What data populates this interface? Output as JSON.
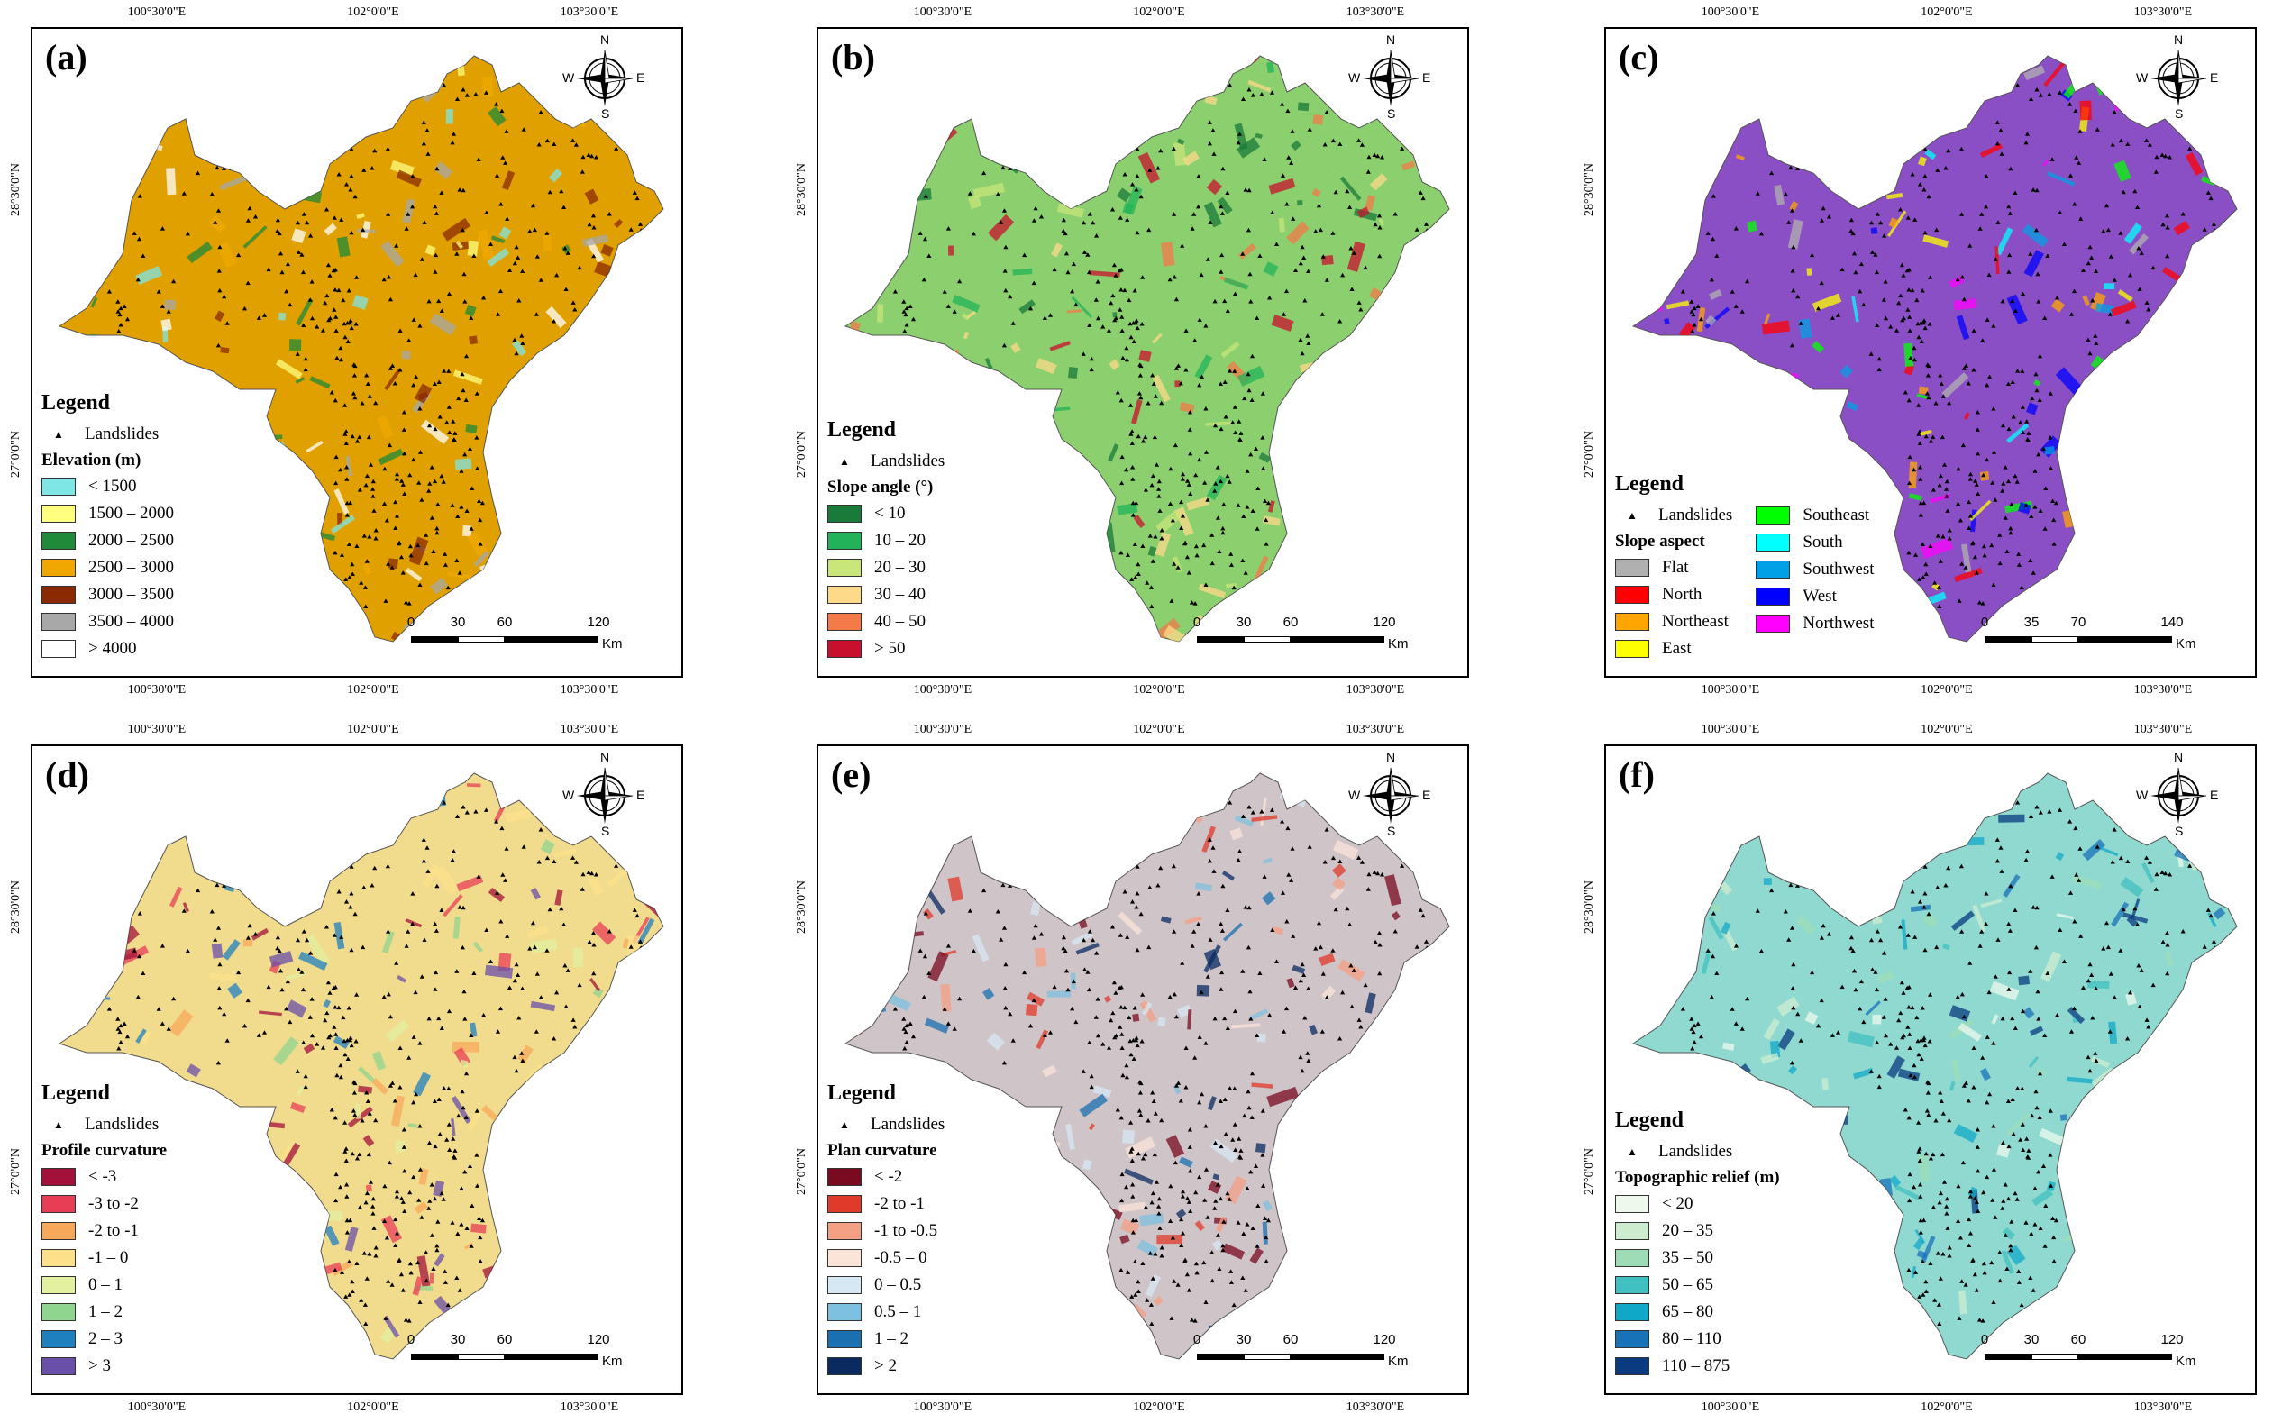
{
  "ticks": {
    "lon": [
      "100°30'0\"E",
      "102°0'0\"E",
      "103°30'0\"E"
    ],
    "lat": [
      "28°30'0\"N",
      "27°0'0\"N"
    ]
  },
  "compass": {
    "n": "N",
    "s": "S",
    "e": "E",
    "w": "W"
  },
  "legend_title": "Legend",
  "landslides_label": "Landslides",
  "panels": [
    {
      "label": "(a)",
      "map_fill": "#e0a000",
      "legend_title": "Elevation (m)",
      "classes": [
        {
          "label": "< 1500",
          "color": "#7fe6e6"
        },
        {
          "label": "1500 – 2000",
          "color": "#ffff80"
        },
        {
          "label": "2000 – 2500",
          "color": "#1e8a3a"
        },
        {
          "label": "2500 – 3000",
          "color": "#f0a800"
        },
        {
          "label": "3000 – 3500",
          "color": "#8b2a00"
        },
        {
          "label": "3500 – 4000",
          "color": "#a8a8a8"
        },
        {
          "label": "> 4000",
          "color": "#ffffff"
        }
      ],
      "scale": [
        "0",
        "30",
        "60",
        "120"
      ],
      "unit": "Km"
    },
    {
      "label": "(b)",
      "map_fill": "#8ccf6e",
      "legend_title": "Slope angle (°)",
      "classes": [
        {
          "label": "< 10",
          "color": "#1a7a3a"
        },
        {
          "label": "10 – 20",
          "color": "#22b35a"
        },
        {
          "label": "20 – 30",
          "color": "#c8e67a"
        },
        {
          "label": "30 – 40",
          "color": "#fdd98a"
        },
        {
          "label": "40 – 50",
          "color": "#f47a4a"
        },
        {
          "label": "> 50",
          "color": "#c8102e"
        }
      ],
      "scale": [
        "0",
        "30",
        "60",
        "120"
      ],
      "unit": "Km"
    },
    {
      "label": "(c)",
      "map_fill": "#8a4fc4",
      "legend_title": "Slope aspect",
      "classes": [
        {
          "label": "Flat",
          "color": "#b0b0b0"
        },
        {
          "label": "North",
          "color": "#ff0000"
        },
        {
          "label": "Northeast",
          "color": "#ffa500"
        },
        {
          "label": "East",
          "color": "#ffff00"
        },
        {
          "label": "Southeast",
          "color": "#00ff00"
        },
        {
          "label": "South",
          "color": "#00ffff"
        },
        {
          "label": "Southwest",
          "color": "#00a0e6"
        },
        {
          "label": "West",
          "color": "#0000ff"
        },
        {
          "label": "Northwest",
          "color": "#ff00ff"
        }
      ],
      "scale": [
        "0",
        "35",
        "70",
        "140"
      ],
      "unit": "Km"
    },
    {
      "label": "(d)",
      "map_fill": "#f1dc8e",
      "legend_title": "Profile curvature",
      "classes": [
        {
          "label": "< -3",
          "color": "#a3103a"
        },
        {
          "label": "-3 to -2",
          "color": "#e83e55"
        },
        {
          "label": "-2 to -1",
          "color": "#f7a85a"
        },
        {
          "label": "-1 – 0",
          "color": "#fde18a"
        },
        {
          "label": "0 – 1",
          "color": "#e2f0a0"
        },
        {
          "label": "1 – 2",
          "color": "#8fd48f"
        },
        {
          "label": "2 – 3",
          "color": "#1f80c0"
        },
        {
          "label": "> 3",
          "color": "#6a4fa8"
        }
      ],
      "scale": [
        "0",
        "30",
        "60",
        "120"
      ],
      "unit": "Km"
    },
    {
      "label": "(e)",
      "map_fill": "#cfc4c8",
      "legend_title": "Plan curvature",
      "classes": [
        {
          "label": "< -2",
          "color": "#7a0a20"
        },
        {
          "label": "-2 to -1",
          "color": "#e03a2a"
        },
        {
          "label": "-1 to -0.5",
          "color": "#f4a084"
        },
        {
          "label": "-0.5 – 0",
          "color": "#fbe4d8"
        },
        {
          "label": "0 – 0.5",
          "color": "#d6e8f4"
        },
        {
          "label": "0.5 – 1",
          "color": "#7ec0e0"
        },
        {
          "label": "1 – 2",
          "color": "#1a70b0"
        },
        {
          "label": "> 2",
          "color": "#0a2a60"
        }
      ],
      "scale": [
        "0",
        "30",
        "60",
        "120"
      ],
      "unit": "Km"
    },
    {
      "label": "(f)",
      "map_fill": "#8fd9d0",
      "legend_title": "Topographic relief (m)",
      "classes": [
        {
          "label": "< 20",
          "color": "#eef8ec"
        },
        {
          "label": "20 – 35",
          "color": "#cdeccf"
        },
        {
          "label": "35 – 50",
          "color": "#9edcb8"
        },
        {
          "label": "50 – 65",
          "color": "#40c0c0"
        },
        {
          "label": "65 – 80",
          "color": "#10a8c8"
        },
        {
          "label": "80 – 110",
          "color": "#1872b8"
        },
        {
          "label": "110 – 875",
          "color": "#0a3a80"
        }
      ],
      "scale": [
        "0",
        "30",
        "60",
        "120"
      ],
      "unit": "Km"
    }
  ]
}
